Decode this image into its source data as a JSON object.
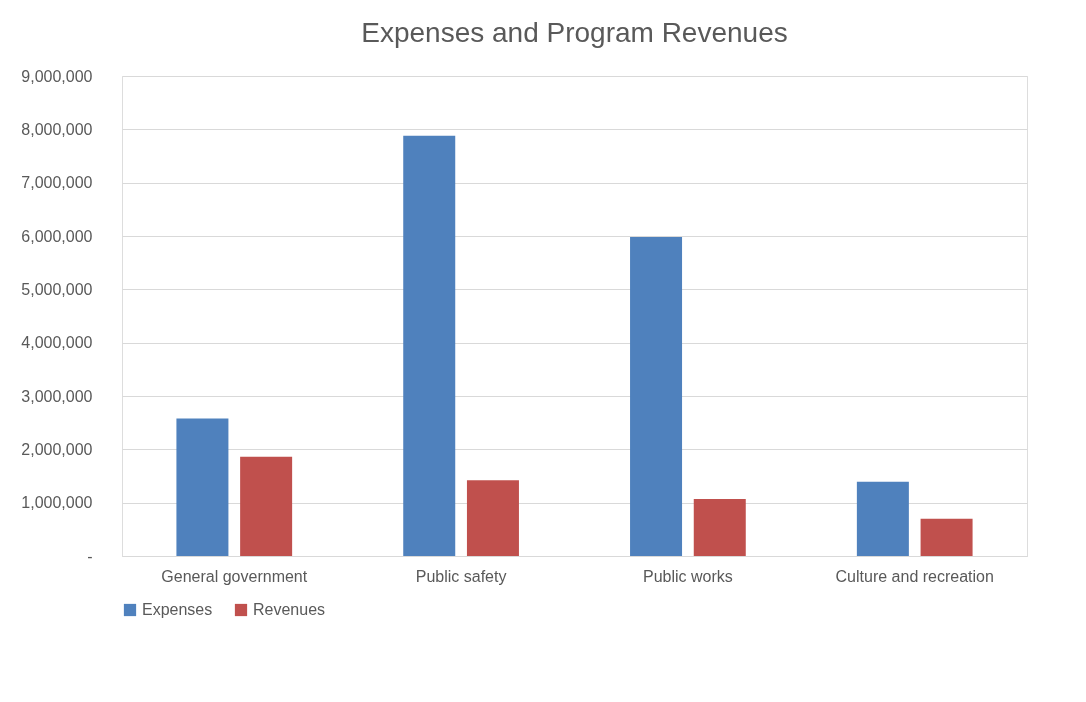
{
  "chart_data": {
    "type": "bar",
    "title": "Expenses and Program Revenues",
    "categories": [
      "General government",
      "Public safety",
      "Public works",
      "Culture and recreation"
    ],
    "series": [
      {
        "name": "Expenses",
        "color": "#4f81bd",
        "values": [
          2580000,
          7880000,
          5980000,
          1390000
        ]
      },
      {
        "name": "Revenues",
        "color": "#c0504d",
        "values": [
          1860000,
          1420000,
          1070000,
          700000
        ]
      }
    ],
    "ylim": [
      0,
      9000000
    ],
    "yticks": [
      {
        "value": 0,
        "label": "-"
      },
      {
        "value": 1000000,
        "label": "1,000,000"
      },
      {
        "value": 2000000,
        "label": "2,000,000"
      },
      {
        "value": 3000000,
        "label": "3,000,000"
      },
      {
        "value": 4000000,
        "label": "4,000,000"
      },
      {
        "value": 5000000,
        "label": "5,000,000"
      },
      {
        "value": 6000000,
        "label": "6,000,000"
      },
      {
        "value": 7000000,
        "label": "7,000,000"
      },
      {
        "value": 8000000,
        "label": "8,000,000"
      },
      {
        "value": 9000000,
        "label": "9,000,000"
      }
    ],
    "grid": "y",
    "legend": "bottom"
  }
}
